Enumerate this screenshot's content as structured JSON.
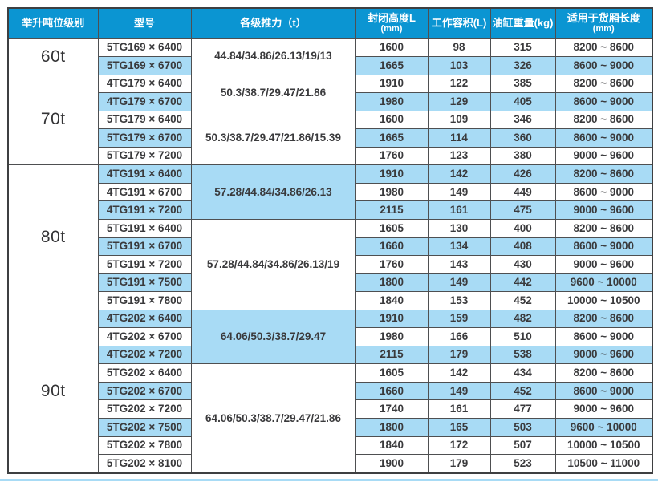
{
  "colors": {
    "header_bg": "#0b95d2",
    "header_text": "#ffffff",
    "stripe": "#a8dbf5",
    "grid": "#4e4f51",
    "outer_border": "#3e3f41",
    "text": "#3a3a3c",
    "tonnage_text": "#333335",
    "bottom_rule": "#a8dbf5"
  },
  "table": {
    "columns": [
      {
        "key": "tonnage",
        "label": "举升吨位级别",
        "sub": ""
      },
      {
        "key": "model",
        "label": "型号",
        "sub": ""
      },
      {
        "key": "thrust",
        "label": "各级推力（t）",
        "sub": ""
      },
      {
        "key": "closed_height",
        "label": "封闭高度L",
        "sub": "(mm)"
      },
      {
        "key": "working_volume",
        "label": "工作容积(L)",
        "sub": ""
      },
      {
        "key": "cylinder_weight",
        "label": "油缸重量(kg)",
        "sub": ""
      },
      {
        "key": "box_length",
        "label": "适用于货厢长度",
        "sub": "(mm)"
      }
    ],
    "groups": [
      {
        "tonnage": "60t",
        "thrust_groups": [
          {
            "thrust": "44.84/34.86/26.13/19/13",
            "shaded": false,
            "rows": [
              {
                "model": "5TG169 × 6400",
                "closed_height": "1600",
                "working_volume": "98",
                "cylinder_weight": "315",
                "box_length": "8200 ~ 8600",
                "shaded": false
              },
              {
                "model": "5TG169 × 6700",
                "closed_height": "1665",
                "working_volume": "103",
                "cylinder_weight": "326",
                "box_length": "8600 ~ 9000",
                "shaded": true
              }
            ]
          }
        ]
      },
      {
        "tonnage": "70t",
        "thrust_groups": [
          {
            "thrust": "50.3/38.7/29.47/21.86",
            "shaded": false,
            "rows": [
              {
                "model": "4TG179 × 6400",
                "closed_height": "1910",
                "working_volume": "122",
                "cylinder_weight": "385",
                "box_length": "8200 ~ 8600",
                "shaded": false
              },
              {
                "model": "4TG179 × 6700",
                "closed_height": "1980",
                "working_volume": "129",
                "cylinder_weight": "405",
                "box_length": "8600 ~ 9000",
                "shaded": true
              }
            ]
          },
          {
            "thrust": "50.3/38.7/29.47/21.86/15.39",
            "shaded": false,
            "rows": [
              {
                "model": "5TG179 × 6400",
                "closed_height": "1600",
                "working_volume": "109",
                "cylinder_weight": "346",
                "box_length": "8200 ~ 8600",
                "shaded": false
              },
              {
                "model": "5TG179 × 6700",
                "closed_height": "1665",
                "working_volume": "114",
                "cylinder_weight": "360",
                "box_length": "8600 ~ 9000",
                "shaded": true
              },
              {
                "model": "5TG179 × 7200",
                "closed_height": "1760",
                "working_volume": "123",
                "cylinder_weight": "380",
                "box_length": "9000 ~ 9600",
                "shaded": false
              }
            ]
          }
        ]
      },
      {
        "tonnage": "80t",
        "thrust_groups": [
          {
            "thrust": "57.28/44.84/34.86/26.13",
            "shaded": true,
            "rows": [
              {
                "model": "4TG191 × 6400",
                "closed_height": "1910",
                "working_volume": "142",
                "cylinder_weight": "426",
                "box_length": "8200 ~ 8600",
                "shaded": true
              },
              {
                "model": "4TG191 × 6700",
                "closed_height": "1980",
                "working_volume": "149",
                "cylinder_weight": "449",
                "box_length": "8600 ~ 9000",
                "shaded": false
              },
              {
                "model": "4TG191 × 7200",
                "closed_height": "2115",
                "working_volume": "161",
                "cylinder_weight": "475",
                "box_length": "9000 ~ 9600",
                "shaded": true
              }
            ]
          },
          {
            "thrust": "57.28/44.84/34.86/26.13/19",
            "shaded": false,
            "rows": [
              {
                "model": "5TG191 × 6400",
                "closed_height": "1605",
                "working_volume": "130",
                "cylinder_weight": "400",
                "box_length": "8200 ~ 8600",
                "shaded": false
              },
              {
                "model": "5TG191 × 6700",
                "closed_height": "1660",
                "working_volume": "134",
                "cylinder_weight": "408",
                "box_length": "8600 ~ 9000",
                "shaded": true
              },
              {
                "model": "5TG191 × 7200",
                "closed_height": "1760",
                "working_volume": "143",
                "cylinder_weight": "430",
                "box_length": "9000 ~ 9600",
                "shaded": false
              },
              {
                "model": "5TG191 × 7500",
                "closed_height": "1800",
                "working_volume": "149",
                "cylinder_weight": "442",
                "box_length": "9600 ~ 10000",
                "shaded": true
              },
              {
                "model": "5TG191 × 7800",
                "closed_height": "1840",
                "working_volume": "153",
                "cylinder_weight": "452",
                "box_length": "10000 ~ 10500",
                "shaded": false
              }
            ]
          }
        ]
      },
      {
        "tonnage": "90t",
        "thrust_groups": [
          {
            "thrust": "64.06/50.3/38.7/29.47",
            "shaded": true,
            "rows": [
              {
                "model": "4TG202 × 6400",
                "closed_height": "1910",
                "working_volume": "159",
                "cylinder_weight": "482",
                "box_length": "8200 ~ 8600",
                "shaded": true
              },
              {
                "model": "4TG202 × 6700",
                "closed_height": "1980",
                "working_volume": "166",
                "cylinder_weight": "510",
                "box_length": "8600 ~ 9000",
                "shaded": false
              },
              {
                "model": "4TG202 × 7200",
                "closed_height": "2115",
                "working_volume": "179",
                "cylinder_weight": "538",
                "box_length": "9000 ~ 9600",
                "shaded": true
              }
            ]
          },
          {
            "thrust": "64.06/50.3/38.7/29.47/21.86",
            "shaded": false,
            "rows": [
              {
                "model": "5TG202 × 6400",
                "closed_height": "1605",
                "working_volume": "142",
                "cylinder_weight": "434",
                "box_length": "8200 ~ 8600",
                "shaded": false
              },
              {
                "model": "5TG202 × 6700",
                "closed_height": "1660",
                "working_volume": "149",
                "cylinder_weight": "452",
                "box_length": "8600 ~ 9000",
                "shaded": true
              },
              {
                "model": "5TG202 × 7200",
                "closed_height": "1740",
                "working_volume": "161",
                "cylinder_weight": "477",
                "box_length": "9000 ~ 9600",
                "shaded": false
              },
              {
                "model": "5TG202 × 7500",
                "closed_height": "1800",
                "working_volume": "165",
                "cylinder_weight": "503",
                "box_length": "9600 ~ 10000",
                "shaded": true
              },
              {
                "model": "5TG202 × 7800",
                "closed_height": "1840",
                "working_volume": "172",
                "cylinder_weight": "507",
                "box_length": "10000 ~ 10500",
                "shaded": false
              },
              {
                "model": "5TG202 × 8100",
                "closed_height": "1900",
                "working_volume": "179",
                "cylinder_weight": "523",
                "box_length": "10500 ~ 11000",
                "shaded": false
              }
            ]
          }
        ]
      }
    ]
  }
}
